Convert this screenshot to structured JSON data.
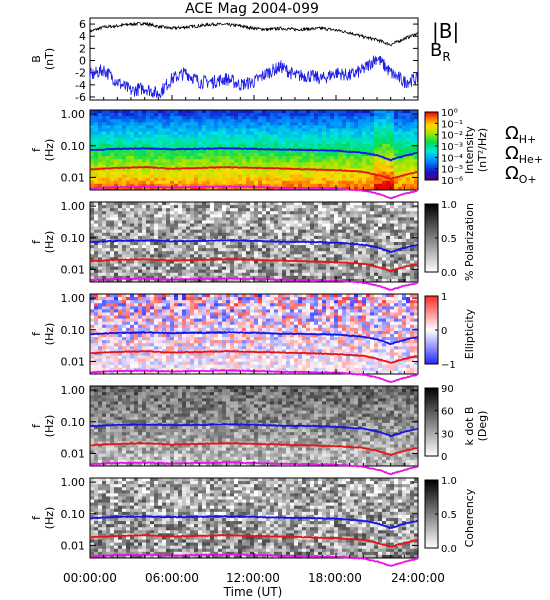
{
  "title": "ACE Mag 2004-099",
  "colors": {
    "total_field": "#000000",
    "radial_field": "#1f1fe6",
    "gyro_h": "#1414e6",
    "gyro_he": "#e61414",
    "gyro_o": "#e614e6"
  },
  "legend_top": [
    {
      "label": "|B|",
      "color": "#000000"
    },
    {
      "label": "B",
      "sub": "R",
      "color": "#1f1fe6"
    }
  ],
  "legend_gyro": [
    {
      "label": "Ω",
      "sub": "H+",
      "color": "#1414e6"
    },
    {
      "label": "Ω",
      "sub": "He+",
      "color": "#e61414"
    },
    {
      "label": "Ω",
      "sub": "O+",
      "color": "#e614e6"
    }
  ],
  "xaxis": {
    "label": "Time (UT)",
    "ticks": [
      "00:00:00",
      "06:00:00",
      "12:00:00",
      "18:00:00",
      "24:00:00"
    ]
  },
  "chart_data": [
    {
      "type": "line",
      "ylabel": "B (nT)",
      "xlim_hours": [
        0,
        24
      ],
      "ylim": [
        -6.5,
        7
      ],
      "yticks": [
        "-6",
        "-4",
        "-2",
        "0",
        "2",
        "4",
        "6"
      ],
      "series": [
        {
          "name": "|B|",
          "x_hours": [
            0,
            1,
            2,
            3,
            4,
            5,
            6,
            7,
            8,
            9,
            10,
            11,
            12,
            13,
            14,
            15,
            16,
            17,
            18,
            19,
            20,
            21,
            22,
            23,
            24
          ],
          "values": [
            4.8,
            5.5,
            5.7,
            6.0,
            6.1,
            5.6,
            5.3,
            5.5,
            5.7,
            6.0,
            5.9,
            5.7,
            5.3,
            5.1,
            5.3,
            5.1,
            5.2,
            5.3,
            5.0,
            4.6,
            3.9,
            3.4,
            2.6,
            3.6,
            4.5
          ]
        },
        {
          "name": "B_R",
          "x_hours": [
            0,
            1,
            2,
            3,
            4,
            5,
            6,
            7,
            8,
            9,
            10,
            11,
            12,
            13,
            14,
            15,
            16,
            17,
            18,
            19,
            20,
            21,
            22,
            23,
            24
          ],
          "values": [
            -2.5,
            -1.5,
            -3.5,
            -5.0,
            -4.5,
            -5.5,
            -3.0,
            -2.0,
            -3.5,
            -3.5,
            -3.0,
            -4.0,
            -3.5,
            -2.0,
            -1.0,
            -2.5,
            -2.5,
            -3.0,
            -2.0,
            -2.5,
            -1.5,
            0.5,
            -2.0,
            -3.5,
            -3.0
          ]
        }
      ]
    },
    {
      "type": "heatmap",
      "ylabel": "f (Hz)",
      "colorbar_label": "Intensity (nT²/Hz)",
      "colorbar_ticks": [
        "10⁰",
        "10⁻¹",
        "10⁻²",
        "10⁻³",
        "10⁻⁴",
        "10⁻⁵",
        "10⁻⁶"
      ],
      "yticks": [
        "1.00",
        "0.10",
        "0.01"
      ]
    },
    {
      "type": "heatmap",
      "ylabel": "f (Hz)",
      "colorbar_label": "% Polarization",
      "colorbar_ticks": [
        "1.0",
        "0.5",
        "0.0"
      ],
      "yticks": [
        "1.00",
        "0.10",
        "0.01"
      ]
    },
    {
      "type": "heatmap",
      "ylabel": "f (Hz)",
      "colorbar_label": "Ellipticity",
      "colorbar_ticks": [
        "1",
        "0",
        "−1"
      ],
      "yticks": [
        "1.00",
        "0.10",
        "0.01"
      ]
    },
    {
      "type": "heatmap",
      "ylabel": "f (Hz)",
      "colorbar_label": "k dot B (Deg)",
      "colorbar_ticks": [
        "90",
        "60",
        "30",
        "0"
      ],
      "yticks": [
        "1.00",
        "0.10",
        "0.01"
      ]
    },
    {
      "type": "heatmap",
      "ylabel": "f (Hz)",
      "colorbar_label": "Coherency",
      "colorbar_ticks": [
        "1.0",
        "0.5",
        "0.0"
      ],
      "yticks": [
        "1.00",
        "0.10",
        "0.01"
      ]
    }
  ],
  "gyro_lines": {
    "x_hours": [
      0,
      2,
      4,
      6,
      8,
      10,
      12,
      14,
      16,
      18,
      20,
      21,
      22,
      23,
      24
    ],
    "H+": [
      0.072,
      0.08,
      0.082,
      0.078,
      0.08,
      0.083,
      0.08,
      0.075,
      0.074,
      0.07,
      0.06,
      0.05,
      0.035,
      0.048,
      0.06
    ],
    "He+": [
      0.018,
      0.02,
      0.021,
      0.019,
      0.02,
      0.021,
      0.02,
      0.019,
      0.018,
      0.017,
      0.015,
      0.012,
      0.009,
      0.012,
      0.015
    ],
    "O+": [
      0.0045,
      0.005,
      0.0051,
      0.0048,
      0.005,
      0.0052,
      0.005,
      0.0047,
      0.0046,
      0.0044,
      0.0038,
      0.0031,
      0.0022,
      0.003,
      0.0038
    ]
  }
}
